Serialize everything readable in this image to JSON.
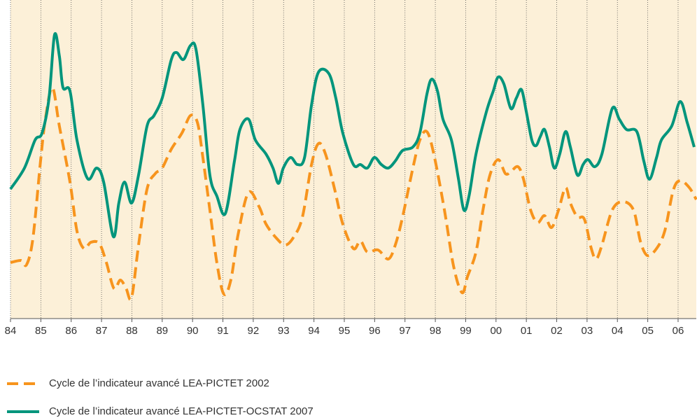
{
  "chart_data": {
    "type": "line",
    "xlim": [
      0,
      22.6
    ],
    "ylim": [
      0,
      455
    ],
    "grid": true,
    "background": "#fcf0d8",
    "xticks": [
      {
        "value": 0,
        "label": "84"
      },
      {
        "value": 1,
        "label": "85"
      },
      {
        "value": 2,
        "label": "86"
      },
      {
        "value": 3,
        "label": "87"
      },
      {
        "value": 4,
        "label": "88"
      },
      {
        "value": 5,
        "label": "89"
      },
      {
        "value": 6,
        "label": "90"
      },
      {
        "value": 7,
        "label": "91"
      },
      {
        "value": 8,
        "label": "92"
      },
      {
        "value": 9,
        "label": "93"
      },
      {
        "value": 10,
        "label": "94"
      },
      {
        "value": 11,
        "label": "95"
      },
      {
        "value": 12,
        "label": "96"
      },
      {
        "value": 13,
        "label": "97"
      },
      {
        "value": 14,
        "label": "98"
      },
      {
        "value": 15,
        "label": "99"
      },
      {
        "value": 16,
        "label": "00"
      },
      {
        "value": 17,
        "label": "01"
      },
      {
        "value": 18,
        "label": "02"
      },
      {
        "value": 19,
        "label": "03"
      },
      {
        "value": 20,
        "label": "04"
      },
      {
        "value": 21,
        "label": "05"
      },
      {
        "value": 22,
        "label": "06"
      }
    ],
    "series": [
      {
        "name": "Cycle de l’indicateur avancé LEA-PICTET 2002",
        "color": "#f7941d",
        "dashed": true,
        "x": [
          0,
          0.35,
          0.53,
          0.74,
          0.99,
          1.15,
          1.38,
          1.61,
          1.96,
          2.19,
          2.42,
          2.65,
          2.93,
          3.16,
          3.41,
          3.62,
          3.81,
          3.99,
          4.22,
          4.5,
          4.77,
          5.0,
          5.3,
          5.65,
          5.93,
          6.16,
          6.34,
          6.57,
          6.8,
          7.03,
          7.26,
          7.5,
          7.84,
          8.19,
          8.42,
          8.76,
          9.06,
          9.34,
          9.62,
          9.92,
          10.15,
          10.38,
          10.68,
          10.95,
          11.3,
          11.53,
          11.76,
          12.11,
          12.45,
          12.68,
          12.92,
          13.26,
          13.49,
          13.72,
          13.95,
          14.3,
          14.6,
          14.88,
          15.06,
          15.34,
          15.57,
          15.8,
          16.07,
          16.31,
          16.49,
          16.72,
          16.9,
          17.14,
          17.37,
          17.6,
          17.83,
          18.06,
          18.29,
          18.45,
          18.68,
          18.91,
          19.14,
          19.3,
          19.49,
          19.83,
          20.18,
          20.53,
          20.76,
          20.99,
          21.29,
          21.56,
          21.84,
          22.07,
          22.37,
          22.6
        ],
        "values": [
          80,
          83,
          77,
          115,
          225,
          285,
          330,
          275,
          195,
          125,
          100,
          109,
          107,
          80,
          43,
          55,
          43,
          30,
          105,
          185,
          207,
          215,
          242,
          265,
          290,
          280,
          230,
          155,
          80,
          35,
          55,
          120,
          180,
          160,
          135,
          115,
          105,
          117,
          145,
          220,
          250,
          235,
          185,
          135,
          100,
          111,
          95,
          98,
          85,
          105,
          145,
          215,
          255,
          267,
          235,
          155,
          75,
          37,
          60,
          95,
          155,
          205,
          227,
          207,
          210,
          217,
          200,
          155,
          137,
          147,
          130,
          155,
          187,
          165,
          145,
          142,
          100,
          85,
          105,
          155,
          167,
          155,
          110,
          90,
          100,
          125,
          183,
          197,
          187,
          170
        ]
      },
      {
        "name": "Cycle de l’indicateur avancé LEA-PICTET-OCSTAT 2007",
        "color": "#00957c",
        "dashed": false,
        "x": [
          0,
          0.46,
          0.81,
          1.04,
          1.27,
          1.45,
          1.61,
          1.73,
          1.96,
          2.19,
          2.54,
          2.84,
          3.07,
          3.39,
          3.57,
          3.76,
          3.99,
          4.22,
          4.5,
          4.73,
          5.0,
          5.3,
          5.47,
          5.7,
          5.93,
          6.11,
          6.34,
          6.57,
          6.8,
          7.08,
          7.38,
          7.56,
          7.84,
          8.07,
          8.42,
          8.65,
          8.83,
          8.99,
          9.23,
          9.46,
          9.69,
          9.92,
          10.15,
          10.49,
          10.72,
          10.95,
          11.3,
          11.53,
          11.76,
          11.99,
          12.22,
          12.45,
          12.68,
          12.92,
          13.26,
          13.49,
          13.72,
          13.88,
          14.07,
          14.25,
          14.53,
          14.76,
          14.94,
          15.11,
          15.34,
          15.68,
          15.91,
          16.07,
          16.26,
          16.49,
          16.67,
          16.84,
          17.0,
          17.18,
          17.32,
          17.46,
          17.6,
          17.76,
          17.92,
          18.1,
          18.29,
          18.45,
          18.68,
          18.87,
          19.03,
          19.26,
          19.49,
          19.83,
          20.06,
          20.3,
          20.64,
          20.87,
          21.06,
          21.29,
          21.45,
          21.79,
          22.07,
          22.3,
          22.53
        ],
        "values": [
          185,
          215,
          255,
          265,
          315,
          405,
          375,
          330,
          325,
          255,
          200,
          215,
          195,
          117,
          165,
          195,
          165,
          205,
          275,
          290,
          315,
          370,
          380,
          370,
          390,
          385,
          305,
          205,
          175,
          150,
          225,
          270,
          285,
          255,
          235,
          215,
          193,
          215,
          230,
          220,
          230,
          305,
          352,
          350,
          315,
          265,
          220,
          220,
          215,
          230,
          220,
          215,
          225,
          240,
          245,
          265,
          320,
          342,
          325,
          285,
          255,
          200,
          155,
          175,
          235,
          295,
          325,
          345,
          335,
          300,
          315,
          327,
          295,
          255,
          247,
          260,
          270,
          245,
          215,
          235,
          267,
          245,
          205,
          220,
          227,
          217,
          235,
          300,
          285,
          270,
          267,
          225,
          199,
          230,
          255,
          275,
          310,
          280,
          245
        ]
      }
    ]
  }
}
